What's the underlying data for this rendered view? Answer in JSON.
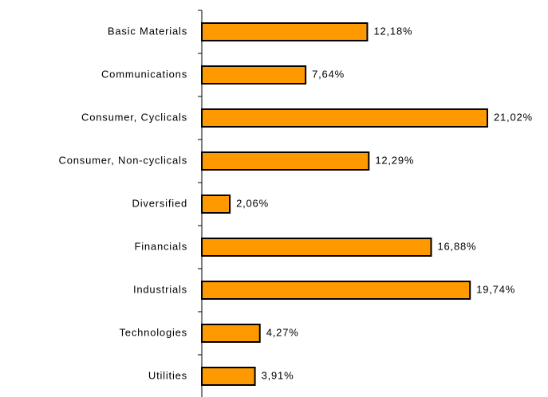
{
  "chart_data": {
    "type": "bar",
    "orientation": "horizontal",
    "categories": [
      "Basic Materials",
      "Communications",
      "Consumer, Cyclicals",
      "Consumer, Non-cyclicals",
      "Diversified",
      "Financials",
      "Industrials",
      "Technologies",
      "Utilities"
    ],
    "values": [
      12.18,
      7.64,
      21.02,
      12.29,
      2.06,
      16.88,
      19.74,
      4.27,
      3.91
    ],
    "value_labels": [
      "12,18%",
      "7,64%",
      "21,02%",
      "12,29%",
      "2,06%",
      "16,88%",
      "19,74%",
      "4,27%",
      "3,91%"
    ],
    "color": "#ff9900"
  }
}
